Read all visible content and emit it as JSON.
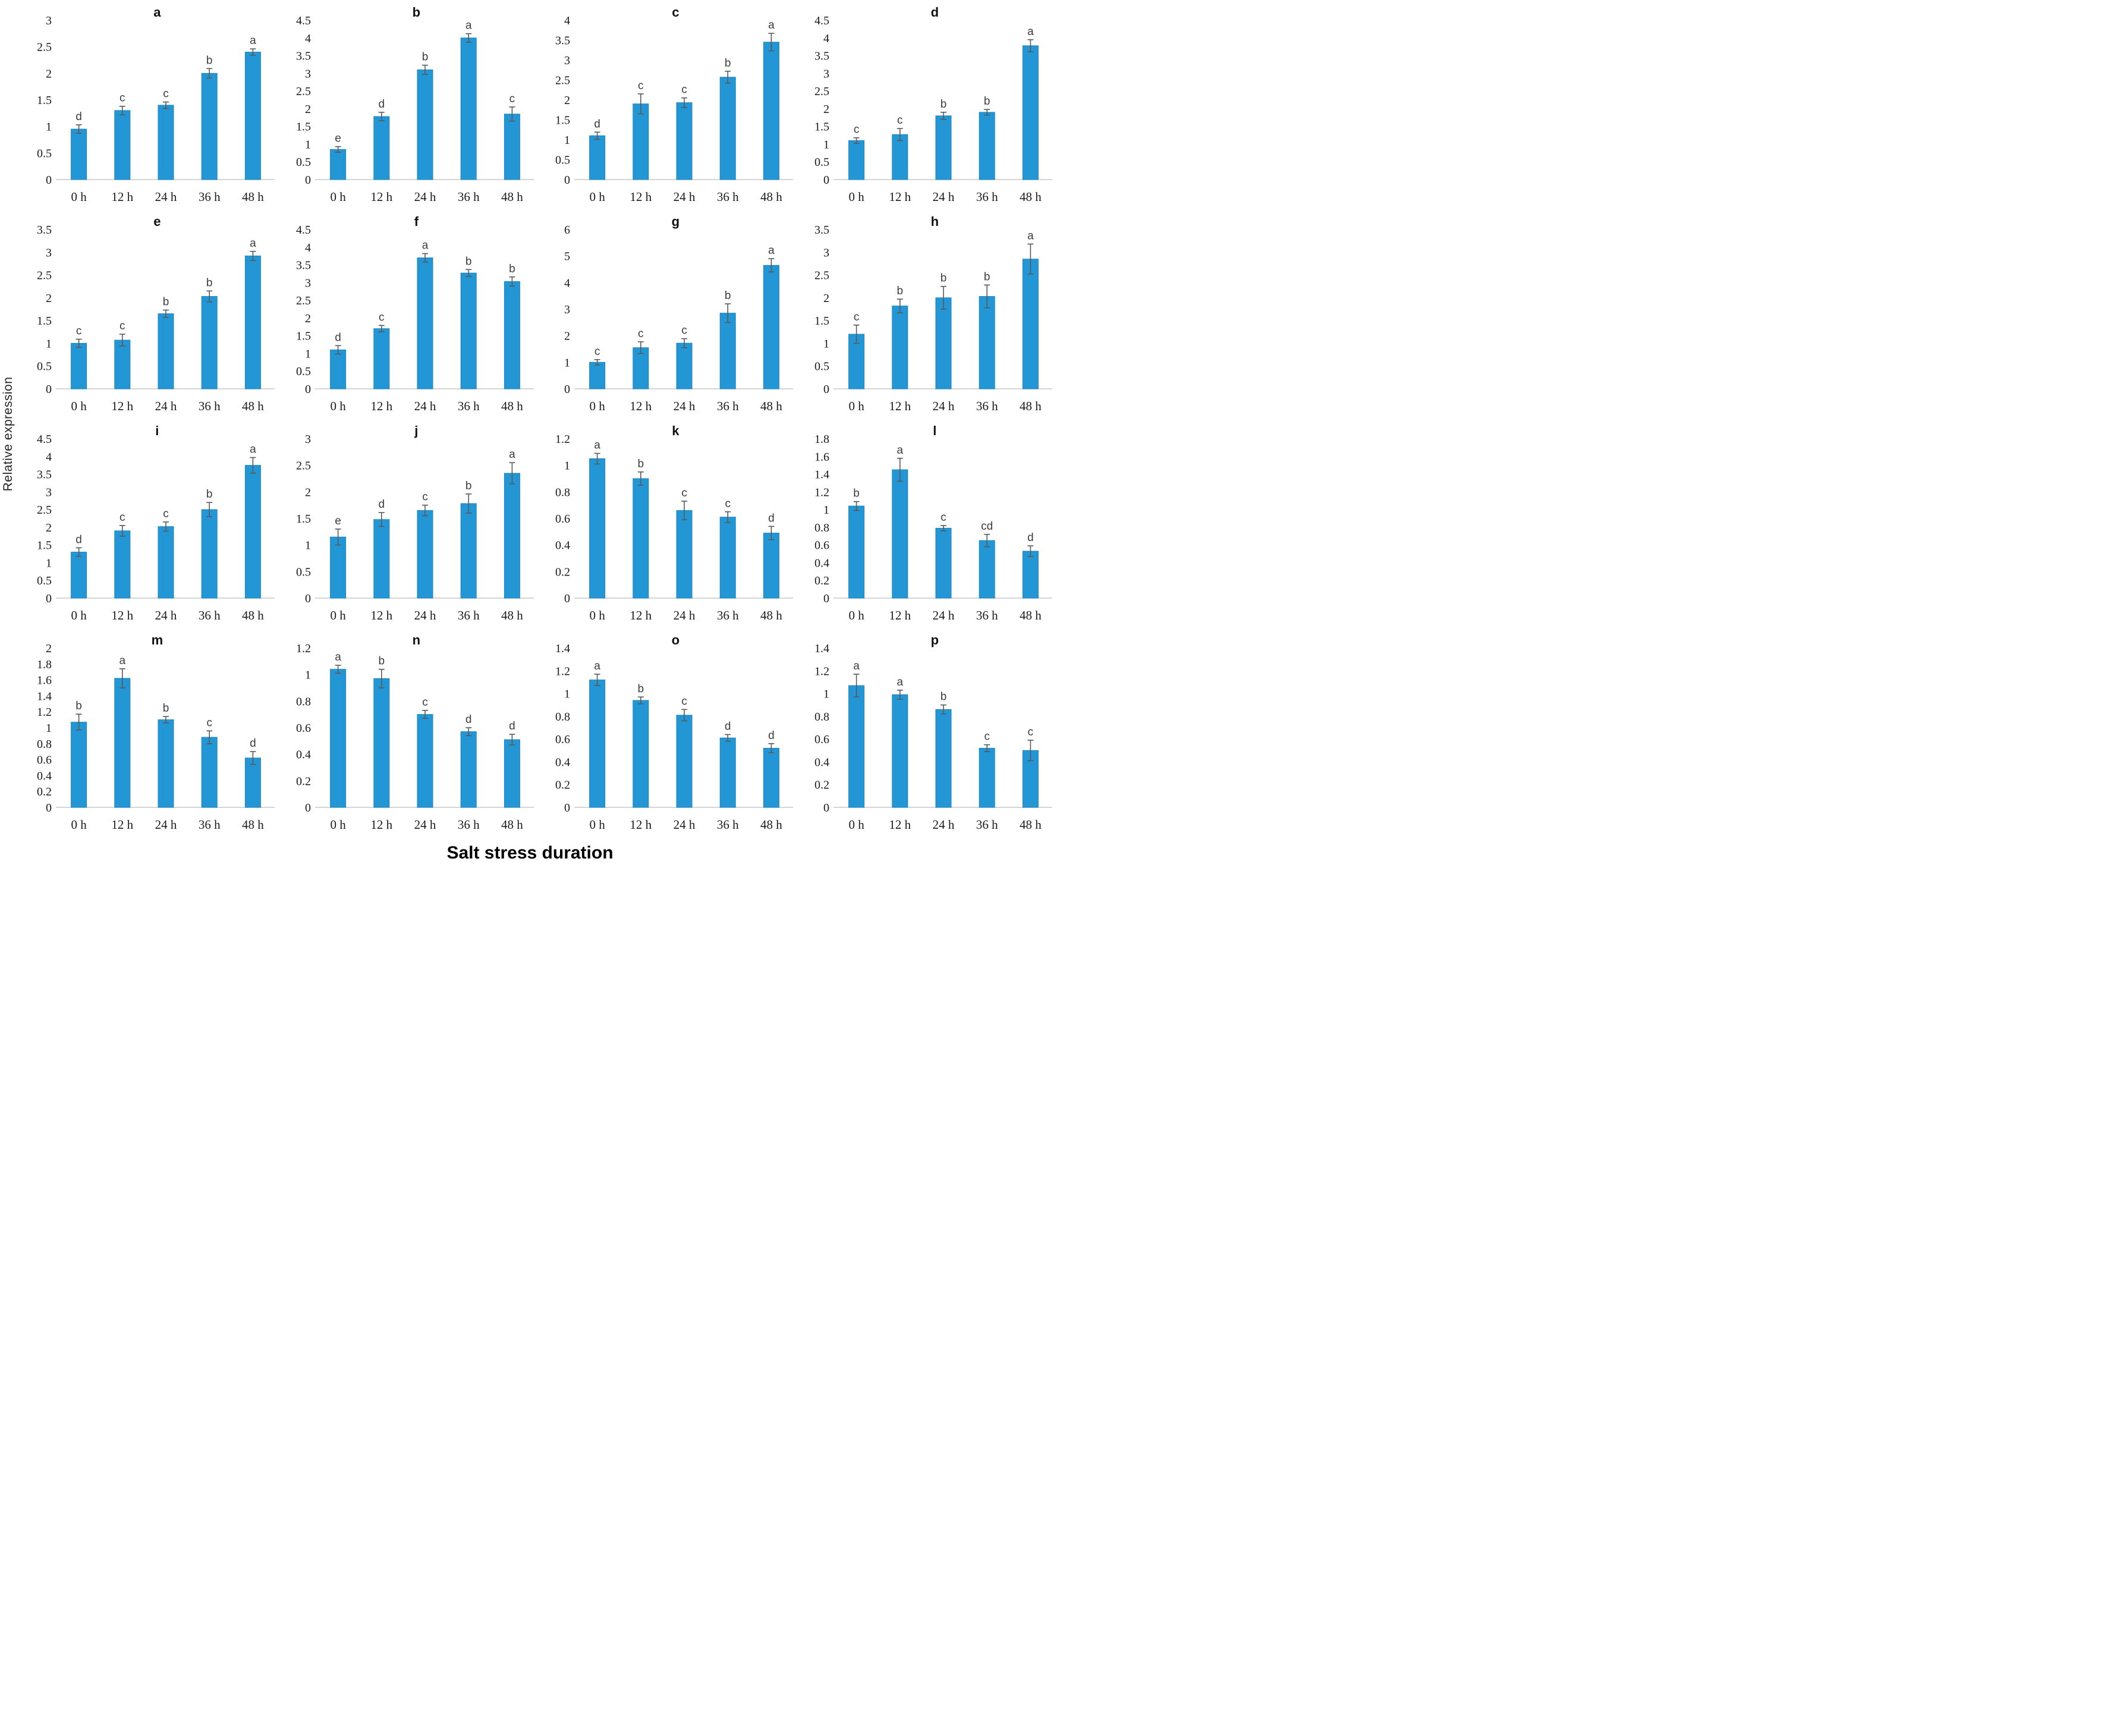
{
  "figure": {
    "ylabel": "Relative expression",
    "xlabel": "Salt stress duration"
  },
  "colors": {
    "bar_fill": "#2397d6",
    "bar_edge": "#1d85be",
    "error_bar": "#595959",
    "axis_line": "#d6d6d6",
    "sig_letter": "#3c3c3c",
    "tick_text": "#1a1a1a"
  },
  "x_categories": [
    "0 h",
    "12 h",
    "24 h",
    "36 h",
    "48 h"
  ],
  "chart_data": [
    {
      "type": "bar",
      "panel": "a",
      "ylim": [
        0,
        3
      ],
      "ystep": 0.5,
      "values": [
        0.95,
        1.3,
        1.4,
        2.0,
        2.4
      ],
      "errors": [
        0.08,
        0.08,
        0.06,
        0.09,
        0.06
      ],
      "sig_letters": [
        "d",
        "c",
        "c",
        "b",
        "a"
      ]
    },
    {
      "type": "bar",
      "panel": "b",
      "ylim": [
        0,
        4.5
      ],
      "ystep": 0.5,
      "values": [
        0.85,
        1.78,
        3.1,
        4.0,
        1.85
      ],
      "errors": [
        0.08,
        0.12,
        0.13,
        0.12,
        0.2
      ],
      "sig_letters": [
        "e",
        "d",
        "b",
        "a",
        "c"
      ]
    },
    {
      "type": "bar",
      "panel": "c",
      "ylim": [
        0,
        4
      ],
      "ystep": 0.5,
      "values": [
        1.1,
        1.9,
        1.93,
        2.57,
        3.45
      ],
      "errors": [
        0.09,
        0.25,
        0.12,
        0.15,
        0.22
      ],
      "sig_letters": [
        "d",
        "c",
        "c",
        "b",
        "a"
      ]
    },
    {
      "type": "bar",
      "panel": "d",
      "ylim": [
        0,
        4.5
      ],
      "ystep": 0.5,
      "values": [
        1.1,
        1.27,
        1.8,
        1.9,
        3.78
      ],
      "errors": [
        0.08,
        0.17,
        0.1,
        0.08,
        0.17
      ],
      "sig_letters": [
        "c",
        "c",
        "b",
        "b",
        "a"
      ]
    },
    {
      "type": "bar",
      "panel": "e",
      "ylim": [
        0,
        3.5
      ],
      "ystep": 0.5,
      "values": [
        1.0,
        1.07,
        1.65,
        2.03,
        2.92
      ],
      "errors": [
        0.09,
        0.13,
        0.08,
        0.12,
        0.1
      ],
      "sig_letters": [
        "c",
        "c",
        "b",
        "b",
        "a"
      ]
    },
    {
      "type": "bar",
      "panel": "f",
      "ylim": [
        0,
        4.5
      ],
      "ystep": 0.5,
      "values": [
        1.1,
        1.7,
        3.7,
        3.27,
        3.03
      ],
      "errors": [
        0.12,
        0.09,
        0.12,
        0.1,
        0.13
      ],
      "sig_letters": [
        "d",
        "c",
        "a",
        "b",
        "b"
      ]
    },
    {
      "type": "bar",
      "panel": "g",
      "ylim": [
        0,
        6
      ],
      "ystep": 1,
      "values": [
        1.0,
        1.55,
        1.72,
        2.85,
        4.65
      ],
      "errors": [
        0.1,
        0.22,
        0.17,
        0.35,
        0.25
      ],
      "sig_letters": [
        "c",
        "c",
        "c",
        "b",
        "a"
      ]
    },
    {
      "type": "bar",
      "panel": "h",
      "ylim": [
        0,
        3.5
      ],
      "ystep": 0.5,
      "values": [
        1.2,
        1.82,
        2.0,
        2.03,
        2.85
      ],
      "errors": [
        0.2,
        0.15,
        0.25,
        0.25,
        0.33
      ],
      "sig_letters": [
        "c",
        "b",
        "b",
        "b",
        "a"
      ]
    },
    {
      "type": "bar",
      "panel": "i",
      "ylim": [
        0,
        4.5
      ],
      "ystep": 0.5,
      "values": [
        1.3,
        1.9,
        2.02,
        2.5,
        3.75
      ],
      "errors": [
        0.12,
        0.15,
        0.13,
        0.2,
        0.22
      ],
      "sig_letters": [
        "d",
        "c",
        "c",
        "b",
        "a"
      ]
    },
    {
      "type": "bar",
      "panel": "j",
      "ylim": [
        0,
        3
      ],
      "ystep": 0.5,
      "values": [
        1.15,
        1.48,
        1.65,
        1.78,
        2.35
      ],
      "errors": [
        0.15,
        0.13,
        0.1,
        0.18,
        0.2
      ],
      "sig_letters": [
        "e",
        "d",
        "c",
        "b",
        "a"
      ]
    },
    {
      "type": "bar",
      "panel": "k",
      "ylim": [
        0,
        1.2
      ],
      "ystep": 0.2,
      "values": [
        1.05,
        0.9,
        0.66,
        0.61,
        0.49
      ],
      "errors": [
        0.04,
        0.05,
        0.07,
        0.04,
        0.05
      ],
      "sig_letters": [
        "a",
        "b",
        "c",
        "c",
        "d"
      ]
    },
    {
      "type": "bar",
      "panel": "l",
      "ylim": [
        0,
        1.8
      ],
      "ystep": 0.2,
      "values": [
        1.04,
        1.45,
        0.79,
        0.65,
        0.53
      ],
      "errors": [
        0.05,
        0.13,
        0.03,
        0.07,
        0.06
      ],
      "sig_letters": [
        "b",
        "a",
        "c",
        "cd",
        "d"
      ]
    },
    {
      "type": "bar",
      "panel": "m",
      "ylim": [
        0,
        2
      ],
      "ystep": 0.2,
      "values": [
        1.07,
        1.62,
        1.1,
        0.88,
        0.62
      ],
      "errors": [
        0.1,
        0.12,
        0.04,
        0.08,
        0.08
      ],
      "sig_letters": [
        "b",
        "a",
        "b",
        "c",
        "d"
      ]
    },
    {
      "type": "bar",
      "panel": "n",
      "ylim": [
        0,
        1.2
      ],
      "ystep": 0.2,
      "values": [
        1.04,
        0.97,
        0.7,
        0.57,
        0.51
      ],
      "errors": [
        0.03,
        0.07,
        0.03,
        0.03,
        0.04
      ],
      "sig_letters": [
        "a",
        "b",
        "c",
        "d",
        "d"
      ]
    },
    {
      "type": "bar",
      "panel": "o",
      "ylim": [
        0,
        1.4
      ],
      "ystep": 0.2,
      "values": [
        1.12,
        0.94,
        0.81,
        0.61,
        0.52
      ],
      "errors": [
        0.05,
        0.03,
        0.05,
        0.03,
        0.04
      ],
      "sig_letters": [
        "a",
        "b",
        "c",
        "d",
        "d"
      ]
    },
    {
      "type": "bar",
      "panel": "p",
      "ylim": [
        0,
        1.4
      ],
      "ystep": 0.2,
      "values": [
        1.07,
        0.99,
        0.86,
        0.52,
        0.5
      ],
      "errors": [
        0.1,
        0.04,
        0.04,
        0.03,
        0.09
      ],
      "sig_letters": [
        "a",
        "a",
        "b",
        "c",
        "c"
      ]
    }
  ]
}
